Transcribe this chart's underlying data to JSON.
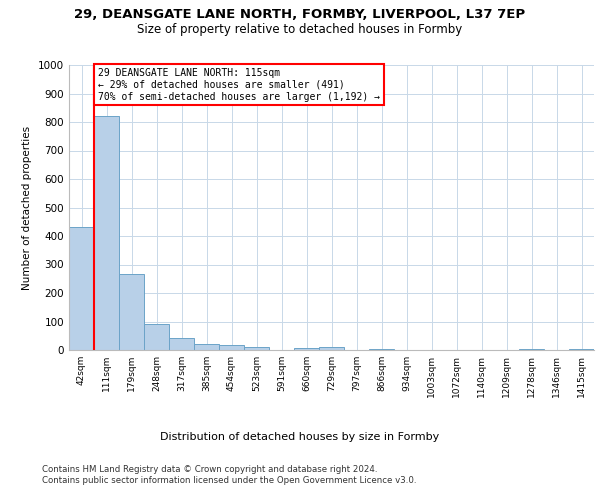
{
  "title1": "29, DEANSGATE LANE NORTH, FORMBY, LIVERPOOL, L37 7EP",
  "title2": "Size of property relative to detached houses in Formby",
  "xlabel": "Distribution of detached houses by size in Formby",
  "ylabel": "Number of detached properties",
  "bin_labels": [
    "42sqm",
    "111sqm",
    "179sqm",
    "248sqm",
    "317sqm",
    "385sqm",
    "454sqm",
    "523sqm",
    "591sqm",
    "660sqm",
    "729sqm",
    "797sqm",
    "866sqm",
    "934sqm",
    "1003sqm",
    "1072sqm",
    "1140sqm",
    "1209sqm",
    "1278sqm",
    "1346sqm",
    "1415sqm"
  ],
  "bar_heights": [
    432,
    820,
    265,
    90,
    43,
    20,
    17,
    12,
    0,
    8,
    12,
    0,
    5,
    0,
    0,
    0,
    0,
    0,
    5,
    0,
    5
  ],
  "bar_color": "#b8d0e8",
  "bar_edge_color": "#6ba3c8",
  "bar_width": 1.0,
  "annotation_line1": "29 DEANSGATE LANE NORTH: 115sqm",
  "annotation_line2": "← 29% of detached houses are smaller (491)",
  "annotation_line3": "70% of semi-detached houses are larger (1,192) →",
  "annotation_box_color": "white",
  "annotation_box_edge": "red",
  "vline_color": "red",
  "vline_bin": 1,
  "ylim": [
    0,
    1000
  ],
  "yticks": [
    0,
    100,
    200,
    300,
    400,
    500,
    600,
    700,
    800,
    900,
    1000
  ],
  "footer1": "Contains HM Land Registry data © Crown copyright and database right 2024.",
  "footer2": "Contains public sector information licensed under the Open Government Licence v3.0.",
  "bg_color": "#ffffff",
  "grid_color": "#c8d8e8"
}
